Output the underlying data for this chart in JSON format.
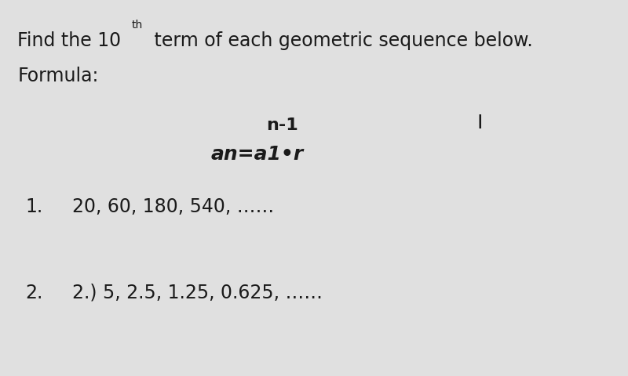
{
  "background_color": "#e0e0e0",
  "text_color": "#1a1a1a",
  "title_part1": "Find the 10",
  "title_superscript": "th",
  "title_part2": " term of each geometric sequence below.",
  "formula_label": "Formula:",
  "formula_exponent": "n-1",
  "formula_base": "an=a1•r",
  "cursor": "I",
  "item1_num": "1.",
  "item1_seq": "20, 60, 180, 540, ……",
  "item2_num": "2.",
  "item2_seq": "2.) 5, 2.5, 1.25, 0.625, ……",
  "fs_main": 17,
  "fs_super": 10,
  "fs_formula": 16,
  "fs_items": 17,
  "fs_cursor": 18
}
